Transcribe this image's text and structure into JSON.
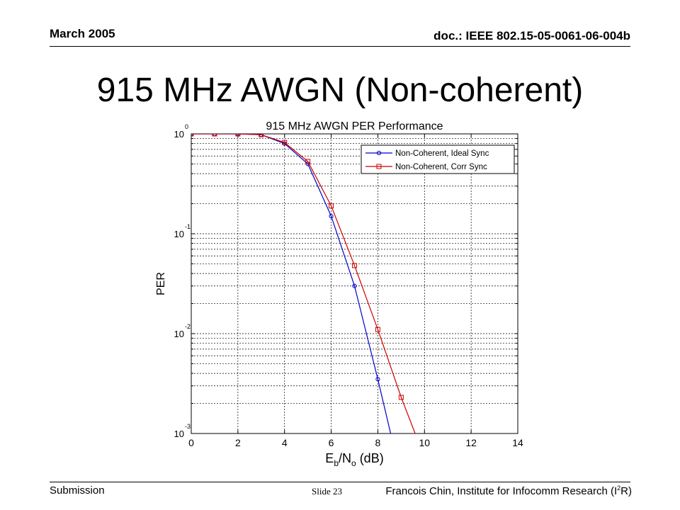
{
  "slide": {
    "date": "March 2005",
    "doc_id": "doc.: IEEE 802.15-05-0061-06-004b",
    "title": "915 MHz AWGN (Non-coherent)",
    "footer_left": "Submission",
    "footer_center": "Slide 23",
    "footer_right_pre": "Francois Chin, Institute for Infocomm Research (I",
    "footer_right_sup": "2",
    "footer_right_post": "R)"
  },
  "chart_data": {
    "type": "line",
    "title": "915 MHz AWGN PER Performance",
    "xlabel_main": "E",
    "xlabel_sub1": "b",
    "xlabel_mid": "/N",
    "xlabel_sub2": "o",
    "xlabel_units": " (dB)",
    "ylabel": "PER",
    "xlim": [
      0,
      14
    ],
    "ylim": [
      0.001,
      1
    ],
    "yscale": "log",
    "grid": true,
    "legend_position": "top-right",
    "x_ticks": [
      "0",
      "2",
      "4",
      "6",
      "8",
      "10",
      "12",
      "14"
    ],
    "y_ticks": [
      {
        "base": "10",
        "exp": "0"
      },
      {
        "base": "10",
        "exp": "-1"
      },
      {
        "base": "10",
        "exp": "-2"
      },
      {
        "base": "10",
        "exp": "-3"
      }
    ],
    "series": [
      {
        "name": "Non-Coherent, Ideal Sync",
        "color": "#0000cc",
        "marker": "circle",
        "x": [
          0,
          1,
          2,
          3,
          4,
          5,
          6,
          7,
          8,
          8.55
        ],
        "y": [
          1,
          1,
          1,
          0.98,
          0.8,
          0.5,
          0.15,
          0.03,
          0.0035,
          0.001
        ]
      },
      {
        "name": "Non-Coherent, Corr Sync",
        "color": "#cc0000",
        "marker": "square",
        "x": [
          0,
          1,
          2,
          3,
          4,
          5,
          6,
          7,
          8,
          9,
          9.6
        ],
        "y": [
          1,
          1,
          1,
          0.98,
          0.82,
          0.53,
          0.19,
          0.048,
          0.011,
          0.0023,
          0.001
        ]
      }
    ]
  }
}
